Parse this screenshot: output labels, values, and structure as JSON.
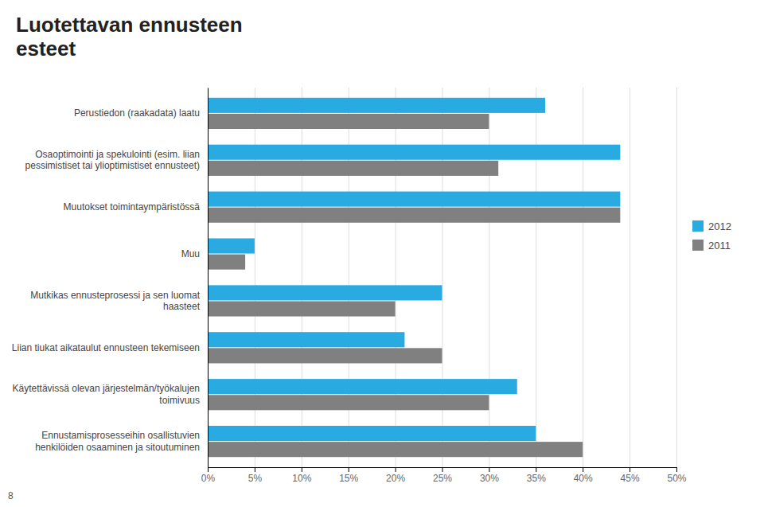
{
  "chart_data": {
    "type": "bar",
    "orientation": "horizontal",
    "title": "Luotettavan ennusteen\nesteet",
    "categories": [
      "Perustiedon (raakadata) laatu",
      "Osaoptimointi ja spekulointi (esim. liian\npessimistiset tai ylioptimistiset ennusteet)",
      "Muutokset toimintaympäristössä",
      "Muu",
      "Mutkikas ennusteprosessi ja sen luomat\nhaasteet",
      "Liian tiukat aikataulut ennusteen tekemiseen",
      "Käytettävissä olevan järjestelmän/työkalujen\ntoimivuus",
      "Ennustamisprosesseihin osallistuvien\nhenkilöiden osaaminen ja sitoutuminen"
    ],
    "series": [
      {
        "name": "2012",
        "color": "#29ABE2",
        "values": [
          0.36,
          0.44,
          0.44,
          0.05,
          0.25,
          0.21,
          0.33,
          0.35
        ]
      },
      {
        "name": "2011",
        "color": "#808080",
        "values": [
          0.3,
          0.31,
          0.44,
          0.04,
          0.2,
          0.25,
          0.3,
          0.4
        ]
      }
    ],
    "xlim": [
      0,
      0.5
    ],
    "xticks": [
      {
        "value": 0.0,
        "label": "0%"
      },
      {
        "value": 0.05,
        "label": "5%"
      },
      {
        "value": 0.1,
        "label": "10%"
      },
      {
        "value": 0.15,
        "label": "15%"
      },
      {
        "value": 0.2,
        "label": "20%"
      },
      {
        "value": 0.25,
        "label": "25%"
      },
      {
        "value": 0.3,
        "label": "30%"
      },
      {
        "value": 0.35,
        "label": "35%"
      },
      {
        "value": 0.4,
        "label": "40%"
      },
      {
        "value": 0.45,
        "label": "45%"
      },
      {
        "value": 0.5,
        "label": "50%"
      }
    ],
    "grid": true,
    "legend": "right",
    "annotations": [
      "8"
    ]
  }
}
